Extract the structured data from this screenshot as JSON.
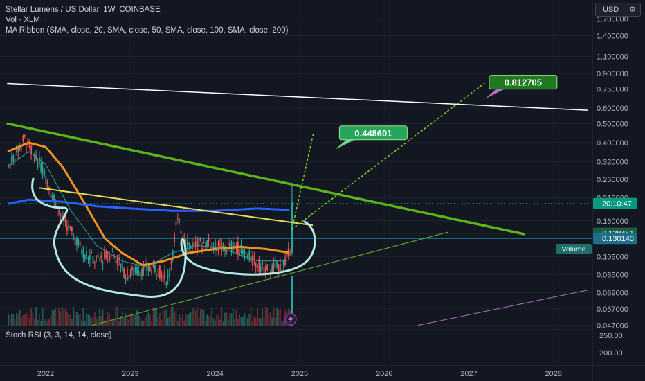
{
  "chart": {
    "title": "Stellar Lumens / US Dollar, 1W, COINBASE",
    "volume_legend": "Vol · XLM",
    "ma_legend": "MA Ribbon (SMA, close, 20, SMA, close, 50, SMA, close, 100, SMA, close, 200)",
    "stoch_legend": "Stoch RSI (3, 3, 14, 14, close)",
    "currency_button": "USD",
    "gear_icon": "gear-icon"
  },
  "chart_data": {
    "type": "line",
    "y_scale": "log",
    "ylim": [
      0.045,
      1.9
    ],
    "price_axis_ticks": [
      "1.700000",
      "1.400000",
      "1.100000",
      "0.900000",
      "0.750000",
      "0.600000",
      "0.500000",
      "0.400000",
      "0.320000",
      "0.260000",
      "0.210000",
      "0.160000",
      "0.130000",
      "0.105000",
      "0.085000",
      "0.069000",
      "0.057000",
      "0.047000"
    ],
    "stoch_axis_ticks": [
      "250.00",
      "200.00"
    ],
    "x_axis_ticks": [
      "2022",
      "2023",
      "2024",
      "2025",
      "2026",
      "2027",
      "2028"
    ],
    "price_labels": [
      {
        "text": "20:10:47",
        "value": 0.1962,
        "color": "#089981",
        "kind": "countdown"
      },
      {
        "text": "0.138451",
        "value": 0.138451,
        "color": "#1b5e4a",
        "kind": "level"
      },
      {
        "text": "0.130140",
        "value": 0.13014,
        "color": "#1f6e8c",
        "kind": "level"
      }
    ],
    "volume_badge": "Volume",
    "annotations": [
      {
        "text": "0.448601",
        "x": "2025.47",
        "y": 0.448601,
        "color": "#26a65b"
      },
      {
        "text": "0.812705",
        "x": "2027.24",
        "y": 0.812705,
        "color": "#1f7a1f"
      }
    ],
    "lines": [
      {
        "name": "white-resistance",
        "color": "#ffffff",
        "points": [
          [
            "2021.55",
            0.8
          ],
          [
            "2028.4",
            0.585
          ]
        ]
      },
      {
        "name": "green-downtrend",
        "color": "#5bb31a",
        "points": [
          [
            "2021.55",
            0.5
          ],
          [
            "2027.65",
            0.137
          ]
        ]
      },
      {
        "name": "yellow-neckline",
        "color": "#e8e054",
        "points": [
          [
            "2021.93",
            0.235
          ],
          [
            "2025.15",
            0.152
          ]
        ]
      },
      {
        "name": "green-support",
        "color": "#6cae27",
        "points": [
          [
            "2022.55",
            0.047
          ],
          [
            "2026.75",
            0.14
          ]
        ]
      },
      {
        "name": "purple-line",
        "color": "#b56ec2",
        "points": [
          [
            "2026.4",
            0.047
          ],
          [
            "2028.4",
            0.071
          ]
        ]
      },
      {
        "name": "projection-1",
        "color": "#7ed321",
        "dotted": true,
        "points": [
          [
            "2024.91",
            0.145
          ],
          [
            "2025.16",
            0.44
          ]
        ]
      },
      {
        "name": "projection-2",
        "color": "#7ed321",
        "dotted": true,
        "points": [
          [
            "2024.91",
            0.145
          ],
          [
            "2027.18",
            0.8
          ]
        ]
      }
    ]
  }
}
